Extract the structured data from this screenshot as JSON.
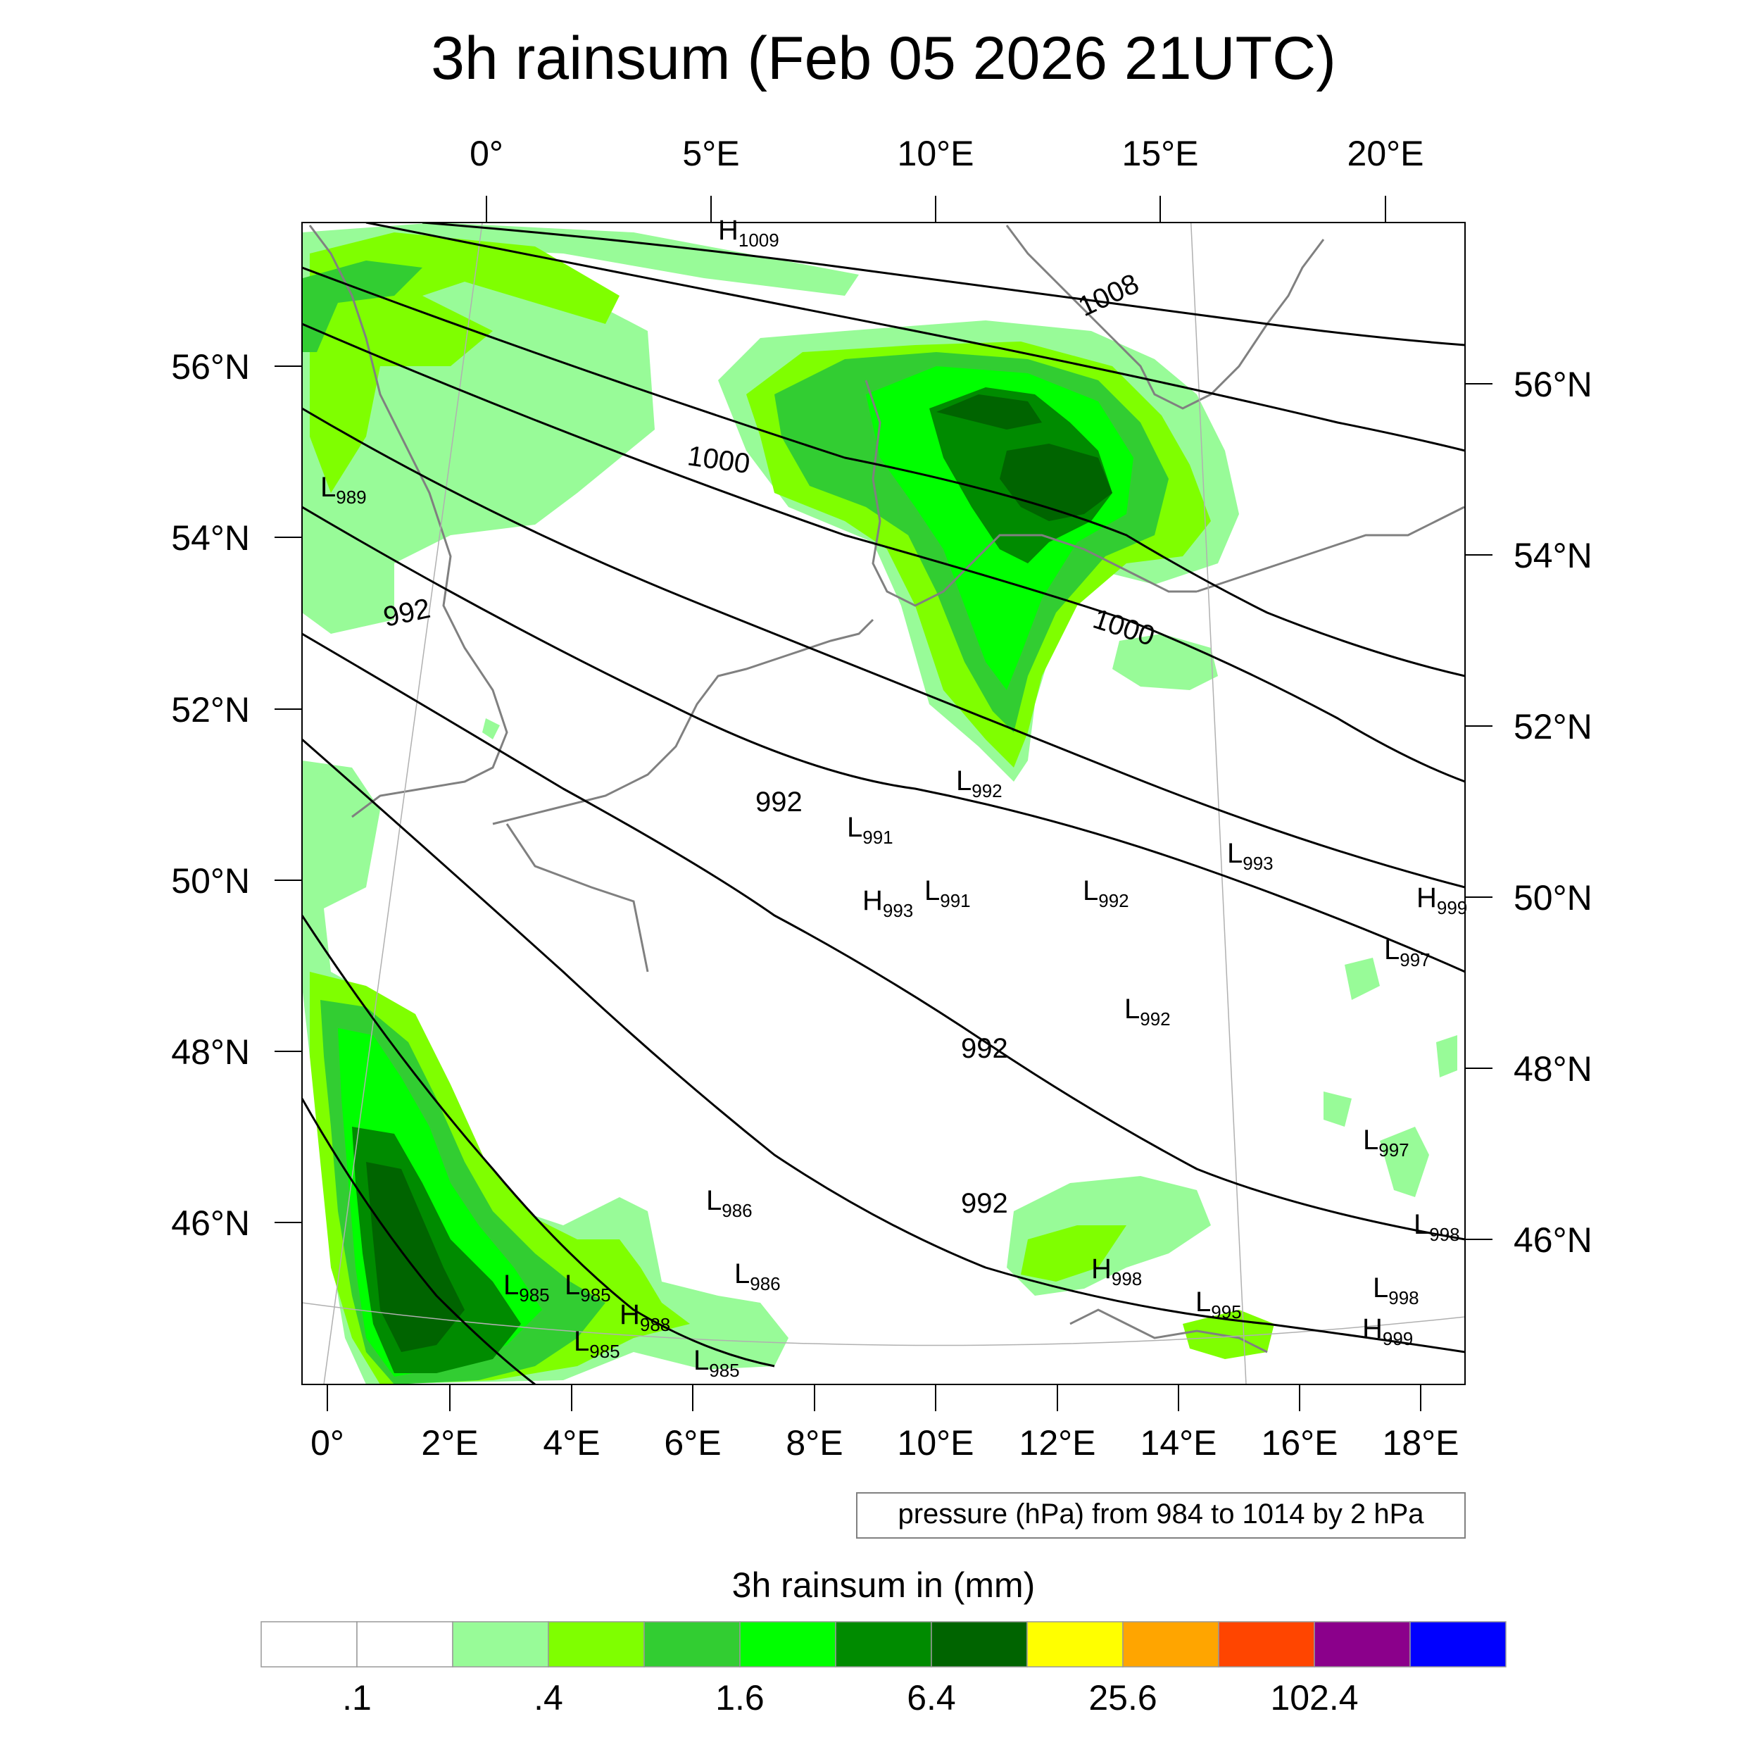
{
  "title": "3h rainsum (Feb 05 2026 21UTC)",
  "top_lon_labels": [
    "0°",
    "5°E",
    "10°E",
    "15°E",
    "20°E"
  ],
  "bottom_lon_labels": [
    "0°",
    "2°E",
    "4°E",
    "6°E",
    "8°E",
    "10°E",
    "12°E",
    "14°E",
    "16°E",
    "18°E"
  ],
  "left_lat_labels": [
    "56°N",
    "54°N",
    "52°N",
    "50°N",
    "48°N",
    "46°N"
  ],
  "right_lat_labels": [
    "56°N",
    "54°N",
    "52°N",
    "50°N",
    "48°N",
    "46°N"
  ],
  "isobar_labels": [
    "1000",
    "1000",
    "992",
    "992",
    "992",
    "992",
    "1008"
  ],
  "pressure_centers": [
    {
      "type": "H",
      "value": "1009"
    },
    {
      "type": "L",
      "value": "989"
    },
    {
      "type": "L",
      "value": "992"
    },
    {
      "type": "L",
      "value": "991"
    },
    {
      "type": "L",
      "value": "991"
    },
    {
      "type": "H",
      "value": "993"
    },
    {
      "type": "L",
      "value": "992"
    },
    {
      "type": "L",
      "value": "993"
    },
    {
      "type": "H",
      "value": "999"
    },
    {
      "type": "L",
      "value": "997"
    },
    {
      "type": "L",
      "value": "992"
    },
    {
      "type": "L",
      "value": "997"
    },
    {
      "type": "L",
      "value": "998"
    },
    {
      "type": "L",
      "value": "986"
    },
    {
      "type": "L",
      "value": "986"
    },
    {
      "type": "L",
      "value": "985"
    },
    {
      "type": "L",
      "value": "985"
    },
    {
      "type": "H",
      "value": "988"
    },
    {
      "type": "L",
      "value": "985"
    },
    {
      "type": "L",
      "value": "985"
    },
    {
      "type": "H",
      "value": "998"
    },
    {
      "type": "L",
      "value": "995"
    },
    {
      "type": "L",
      "value": "998"
    },
    {
      "type": "H",
      "value": "999"
    }
  ],
  "contour_info": "pressure (hPa) from 984 to 1014 by 2 hPa",
  "colorbar": {
    "title": "3h rainsum in (mm)",
    "tick_labels": [
      ".1",
      ".4",
      "1.6",
      "6.4",
      "25.6",
      "102.4"
    ],
    "colors": [
      "#ffffff",
      "#ffffff",
      "#98fb98",
      "#7fff00",
      "#32cd32",
      "#00ff00",
      "#008b00",
      "#006400",
      "#ffff00",
      "#ffa500",
      "#ff4500",
      "#8b008b",
      "#0000ff"
    ]
  }
}
